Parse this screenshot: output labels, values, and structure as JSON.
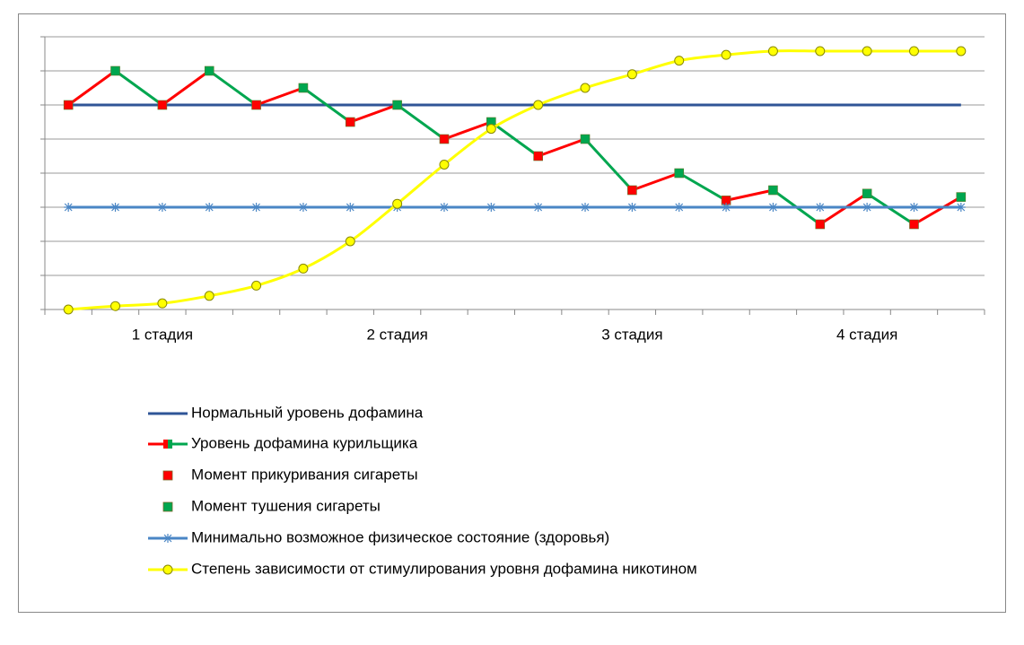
{
  "chart_data": {
    "type": "line",
    "categories": [
      null,
      null,
      "1 стадия",
      null,
      null,
      null,
      null,
      "2 стадия",
      null,
      null,
      null,
      null,
      "3 стадия",
      null,
      null,
      null,
      null,
      "4 стадия",
      null,
      null
    ],
    "ylim": [
      0,
      8
    ],
    "yticks": [
      0,
      1,
      2,
      3,
      4,
      5,
      6,
      7,
      8
    ],
    "grid": true,
    "series": [
      {
        "name": "Нормальный уровень дофамина",
        "color": "#2f5597",
        "marker": "none",
        "values": [
          6,
          6,
          6,
          6,
          6,
          6,
          6,
          6,
          6,
          6,
          6,
          6,
          6,
          6,
          6,
          6,
          6,
          6,
          6,
          6
        ]
      },
      {
        "name": "Уровень дофамина курильщика",
        "color": "#ff0000",
        "color2": "#00a64f",
        "marker": "square",
        "marker_colors": [
          "#ff0000",
          "#00a64f",
          "#ff0000",
          "#00a64f",
          "#ff0000",
          "#00a64f",
          "#ff0000",
          "#00a64f",
          "#ff0000",
          "#00a64f",
          "#ff0000",
          "#00a64f",
          "#ff0000",
          "#00a64f",
          "#ff0000",
          "#00a64f",
          "#ff0000",
          "#00a64f",
          "#ff0000",
          "#00a64f"
        ],
        "values": [
          6,
          7,
          6,
          7,
          6,
          6.5,
          5.5,
          6,
          5,
          5.5,
          4.5,
          5,
          3.5,
          4,
          3.2,
          3.5,
          2.5,
          3.4,
          2.5,
          3.3
        ]
      },
      {
        "name": "Минимально возможное физическое состояние (здоровья)",
        "color": "#4a86c5",
        "marker": "star",
        "values": [
          3,
          3,
          3,
          3,
          3,
          3,
          3,
          3,
          3,
          3,
          3,
          3,
          3,
          3,
          3,
          3,
          3,
          3,
          3,
          3
        ]
      },
      {
        "name": "Степень зависимости от стимулирования уровня дофамина никотином",
        "color": "#ffff00",
        "marker": "circle",
        "smooth": true,
        "values": [
          0,
          0.1,
          0.18,
          0.4,
          0.7,
          1.2,
          2,
          3.1,
          4.25,
          5.3,
          6,
          6.5,
          6.9,
          7.3,
          7.47,
          7.58,
          7.58,
          7.58,
          7.58,
          7.58
        ]
      }
    ],
    "marker_legend": [
      {
        "name": "Момент прикуривания сигареты",
        "color": "#ff0000"
      },
      {
        "name": "Момент тушения сигареты",
        "color": "#00a64f"
      }
    ]
  }
}
